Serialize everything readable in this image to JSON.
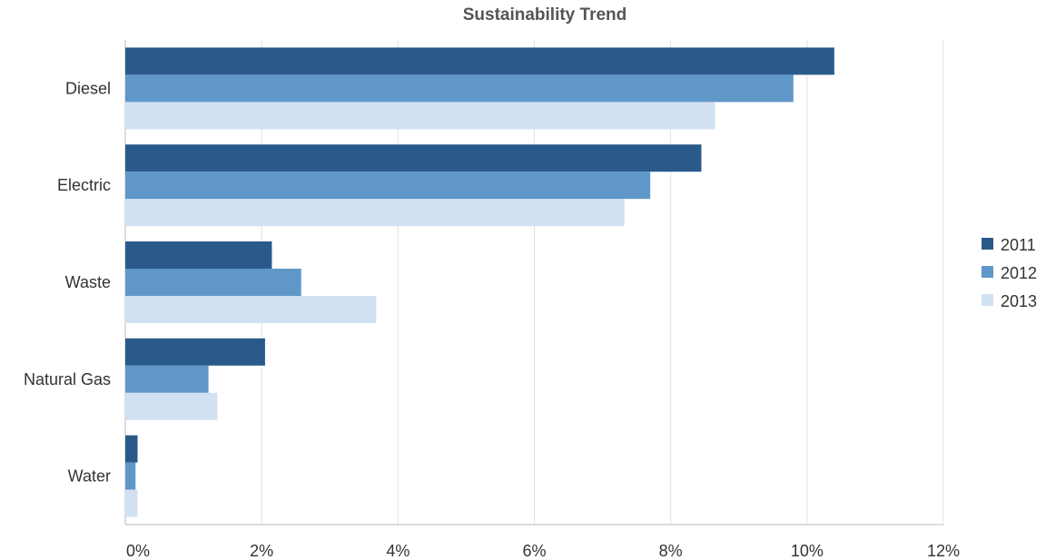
{
  "chart_data": {
    "type": "bar",
    "orientation": "horizontal",
    "title": "Sustainability Trend",
    "xlabel": "",
    "ylabel": "",
    "categories": [
      "Diesel",
      "Electric",
      "Waste",
      "Natural Gas",
      "Water"
    ],
    "series": [
      {
        "name": "2011",
        "color": "#2a5a8a",
        "values": [
          10.4,
          8.45,
          2.15,
          2.05,
          0.18
        ]
      },
      {
        "name": "2012",
        "color": "#6097c9",
        "values": [
          9.8,
          7.7,
          2.58,
          1.22,
          0.15
        ]
      },
      {
        "name": "2013",
        "color": "#d2e1f2",
        "values": [
          8.65,
          7.32,
          3.68,
          1.35,
          0.18
        ]
      }
    ],
    "xlim": [
      0,
      12
    ],
    "xticks": [
      "0%",
      "2%",
      "4%",
      "6%",
      "8%",
      "10%",
      "12%"
    ],
    "grid": true,
    "legend": "right"
  }
}
